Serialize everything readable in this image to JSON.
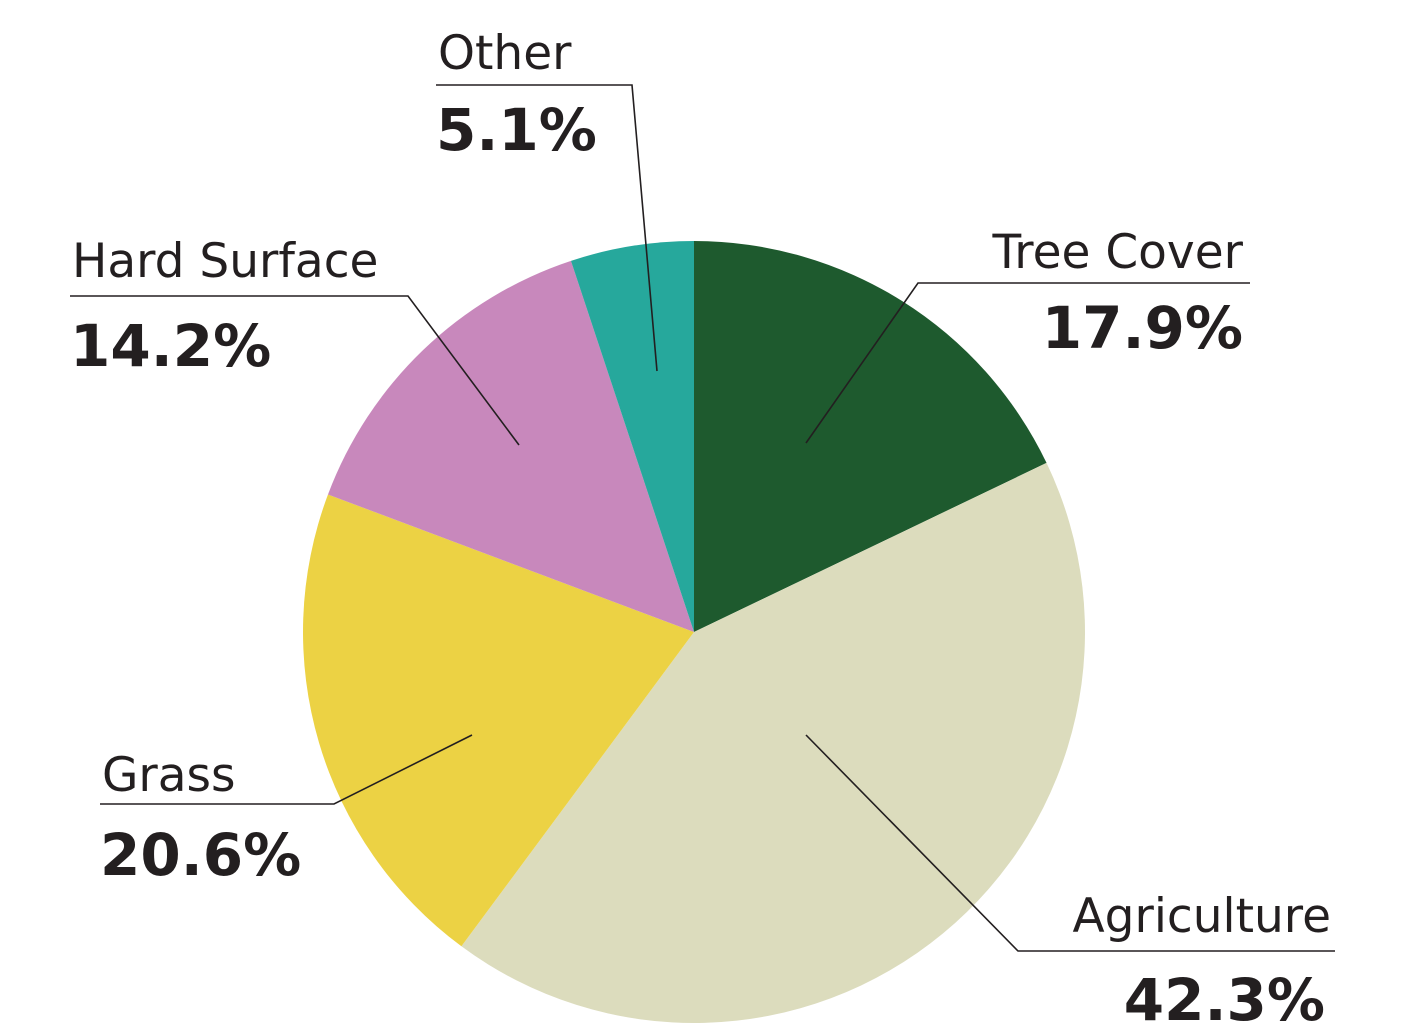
{
  "chart_data": {
    "type": "pie",
    "title": "",
    "start_angle_deg": 0,
    "direction": "clockwise",
    "slices": [
      {
        "label": "Tree Cover",
        "value": 17.9,
        "value_label": "17.9%",
        "color": "#1e5a2e"
      },
      {
        "label": "Agriculture",
        "value": 42.3,
        "value_label": "42.3%",
        "color": "#dcdcbd"
      },
      {
        "label": "Grass",
        "value": 20.6,
        "value_label": "20.6%",
        "color": "#ecd244"
      },
      {
        "label": "Hard Surface",
        "value": 14.2,
        "value_label": "14.2%",
        "color": "#c888bc"
      },
      {
        "label": "Other",
        "value": 5.1,
        "value_label": "5.1%",
        "color": "#26a89c"
      }
    ]
  }
}
